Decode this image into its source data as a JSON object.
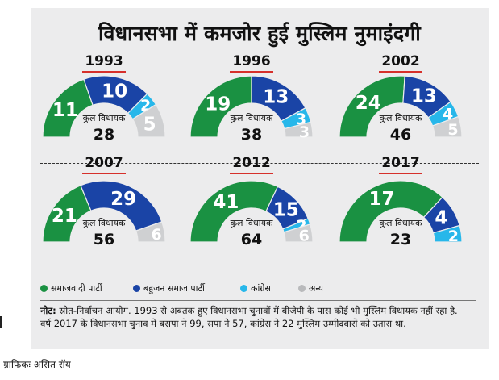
{
  "title": "विधानसभा में कमजोर हुई मुस्लिम नुमाइंदगी",
  "center_label": "कुल विधायक",
  "colors": {
    "sp": "#1a9142",
    "bsp": "#1a44a6",
    "congress": "#27b7ea",
    "other": "#cfd0d2",
    "panel": "#ececed",
    "year_underline": "#d6302b"
  },
  "chart_data": [
    {
      "type": "pie",
      "year": "1993",
      "total": "28",
      "series": [
        {
          "name": "समाजवादी पार्टी",
          "value": 11
        },
        {
          "name": "बहुजन समाज पार्टी",
          "value": 10
        },
        {
          "name": "कांग्रेस",
          "value": 2
        },
        {
          "name": "अन्य",
          "value": 5
        }
      ]
    },
    {
      "type": "pie",
      "year": "1996",
      "total": "38",
      "series": [
        {
          "name": "समाजवादी पार्टी",
          "value": 19
        },
        {
          "name": "बहुजन समाज पार्टी",
          "value": 13
        },
        {
          "name": "कांग्रेस",
          "value": 3
        },
        {
          "name": "अन्य",
          "value": 3
        }
      ]
    },
    {
      "type": "pie",
      "year": "2002",
      "total": "46",
      "series": [
        {
          "name": "समाजवादी पार्टी",
          "value": 24
        },
        {
          "name": "बहुजन समाज पार्टी",
          "value": 13
        },
        {
          "name": "कांग्रेस",
          "value": 4
        },
        {
          "name": "अन्य",
          "value": 5
        }
      ]
    },
    {
      "type": "pie",
      "year": "2007",
      "total": "56",
      "series": [
        {
          "name": "समाजवादी पार्टी",
          "value": 21
        },
        {
          "name": "बहुजन समाज पार्टी",
          "value": 29
        },
        {
          "name": "कांग्रेस",
          "value": 0
        },
        {
          "name": "अन्य",
          "value": 6
        }
      ]
    },
    {
      "type": "pie",
      "year": "2012",
      "total": "64",
      "series": [
        {
          "name": "समाजवादी पार्टी",
          "value": 41
        },
        {
          "name": "बहुजन समाज पार्टी",
          "value": 15
        },
        {
          "name": "कांग्रेस",
          "value": 2
        },
        {
          "name": "अन्य",
          "value": 6
        }
      ]
    },
    {
      "type": "pie",
      "year": "2017",
      "total": "23",
      "series": [
        {
          "name": "समाजवादी पार्टी",
          "value": 17
        },
        {
          "name": "बहुजन समाज पार्टी",
          "value": 4
        },
        {
          "name": "कांग्रेस",
          "value": 2
        },
        {
          "name": "अन्य",
          "value": 0
        }
      ]
    }
  ],
  "legend": [
    "समाजवादी पार्टी",
    "बहुजन समाज पार्टी",
    "कांग्रेस",
    "अन्य"
  ],
  "note": {
    "label": "नोट:",
    "text": "स्रोत-निर्वाचन आयोग. 1993 से अबतक हुए विधानसभा चुनावों में बीजेपी के पास कोई भी मुस्लिम विधायक नहीं रहा है. वर्ष 2017 के विधानसभा चुनाव में बसपा ने 99, सपा ने 57, कांग्रेस ने 22 मुस्लिम उम्मीदवारों को उतारा था."
  },
  "credit": "ग्राफिकः असित रॉय"
}
